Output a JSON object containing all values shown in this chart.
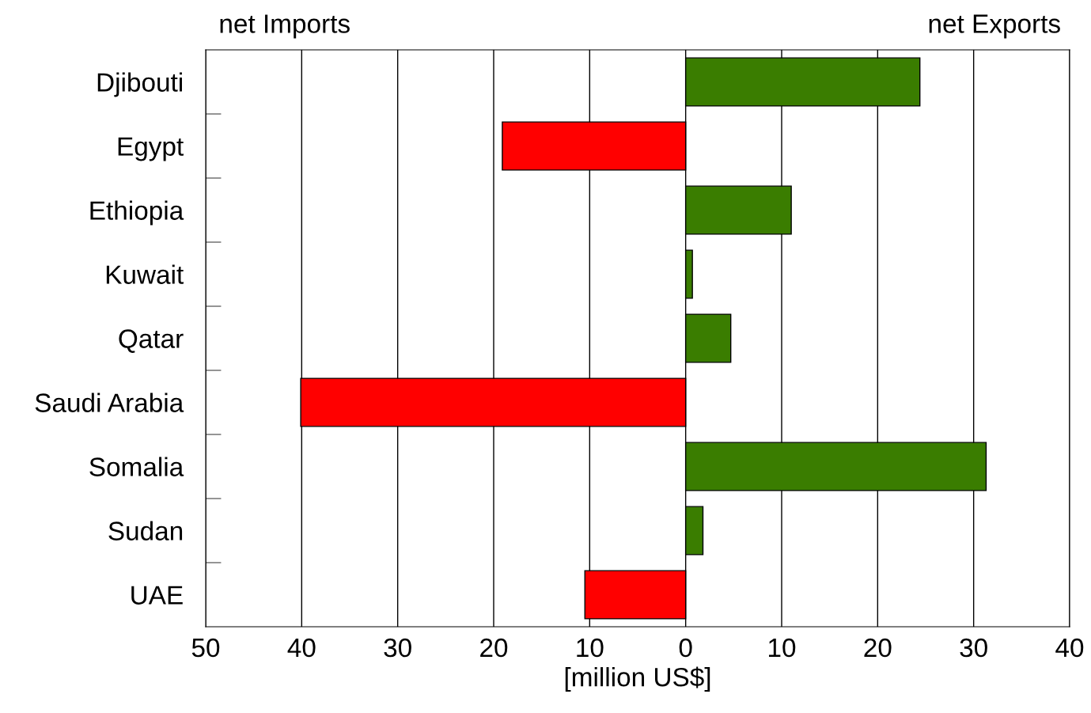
{
  "chart_data": {
    "type": "bar",
    "orientation": "horizontal",
    "xlabel": "[million US$]",
    "categories": [
      "Djibouti",
      "Egypt",
      "Ethiopia",
      "Kuwait",
      "Qatar",
      "Saudi Arabia",
      "Somalia",
      "Sudan",
      "UAE"
    ],
    "values": [
      24.4,
      -19.1,
      11.0,
      0.7,
      4.7,
      -40.1,
      31.3,
      1.8,
      -10.5
    ],
    "colors": [
      "#3a7d00",
      "#ff0000",
      "#3a7d00",
      "#3a7d00",
      "#3a7d00",
      "#ff0000",
      "#3a7d00",
      "#3a7d00",
      "#ff0000"
    ],
    "xlim": [
      -50,
      40
    ],
    "xticks": [
      {
        "value": -50,
        "label": "50"
      },
      {
        "value": -40,
        "label": "40"
      },
      {
        "value": -30,
        "label": "30"
      },
      {
        "value": -20,
        "label": "20"
      },
      {
        "value": -10,
        "label": "10"
      },
      0,
      10,
      20,
      30,
      40
    ],
    "grid": "x",
    "annotations": [
      "net Imports",
      "net Exports"
    ]
  }
}
